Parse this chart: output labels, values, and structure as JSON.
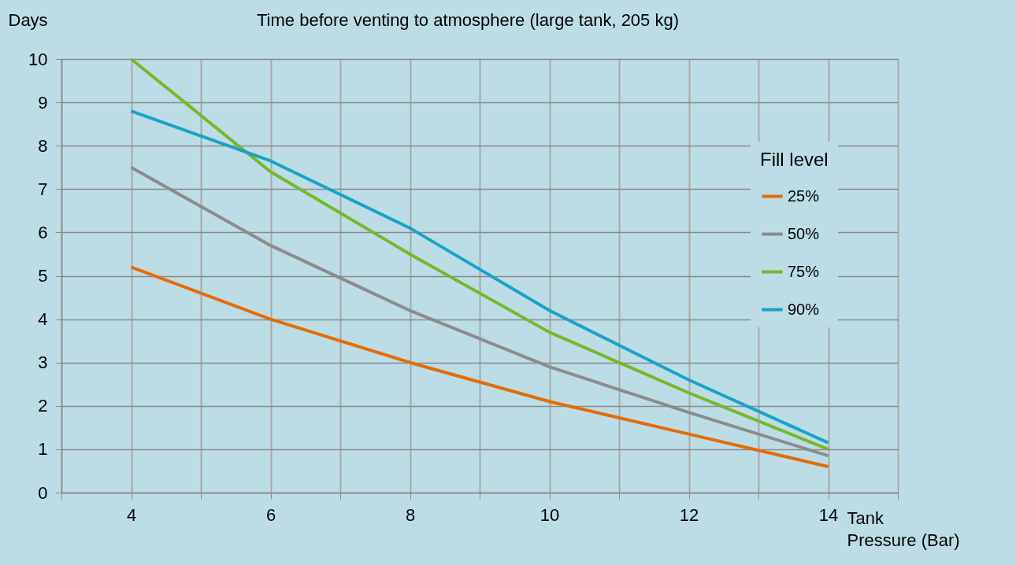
{
  "chart_data": {
    "type": "line",
    "title": "Time before venting to atmosphere (large tank, 205 kg)",
    "xlabel": "Tank Pressure (Bar)",
    "ylabel": "Days",
    "legend_title": "Fill level",
    "x": [
      4,
      6,
      8,
      10,
      12,
      14
    ],
    "series": [
      {
        "name": "25%",
        "color": "#e46c0a",
        "values": [
          5.2,
          4.0,
          3.0,
          2.1,
          1.35,
          0.6
        ]
      },
      {
        "name": "50%",
        "color": "#8c8c8c",
        "values": [
          7.5,
          5.7,
          4.2,
          2.9,
          1.85,
          0.85
        ]
      },
      {
        "name": "75%",
        "color": "#77b82a",
        "values": [
          10.0,
          7.4,
          5.5,
          3.7,
          2.3,
          1.0
        ]
      },
      {
        "name": "90%",
        "color": "#1aa3c8",
        "values": [
          8.8,
          7.65,
          6.1,
          4.2,
          2.6,
          1.15
        ]
      }
    ],
    "xlim": [
      3,
      15
    ],
    "xticks": [
      {
        "value": 3,
        "label": null
      },
      4,
      {
        "value": 5,
        "label": null
      },
      6,
      {
        "value": 7,
        "label": null
      },
      8,
      {
        "value": 9,
        "label": null
      },
      10,
      {
        "value": 11,
        "label": null
      },
      12,
      {
        "value": 13,
        "label": null
      },
      14,
      {
        "value": 15,
        "label": null
      }
    ],
    "ylim": [
      0,
      10
    ],
    "yticks": [
      0,
      1,
      2,
      3,
      4,
      5,
      6,
      7,
      8,
      9,
      10
    ],
    "grid": true,
    "legend": "right",
    "marker": "none",
    "line_style": "solid"
  }
}
